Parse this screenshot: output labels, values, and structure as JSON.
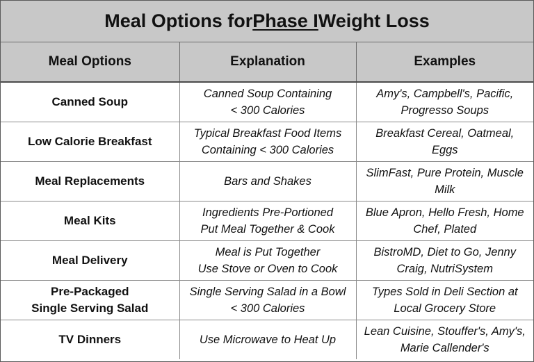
{
  "title": {
    "prefix": "Meal Options for ",
    "underlined": "Phase I",
    "suffix": " Weight Loss"
  },
  "headers": [
    "Meal Options",
    "Explanation",
    "Examples"
  ],
  "rows": [
    {
      "option": [
        "Canned Soup"
      ],
      "explanation": [
        "Canned Soup Containing",
        "< 300 Calories"
      ],
      "examples": [
        "Amy's, Campbell's, Pacific,",
        "Progresso Soups"
      ]
    },
    {
      "option": [
        "Low Calorie Breakfast"
      ],
      "explanation": [
        "Typical Breakfast Food Items",
        "Containing < 300 Calories"
      ],
      "examples": [
        "Breakfast Cereal, Oatmeal,",
        "Eggs"
      ]
    },
    {
      "option": [
        "Meal Replacements"
      ],
      "explanation": [
        "Bars and Shakes"
      ],
      "examples": [
        "SlimFast, Pure Protein, Muscle",
        "Milk"
      ]
    },
    {
      "option": [
        "Meal Kits"
      ],
      "explanation": [
        "Ingredients Pre-Portioned",
        "Put Meal Together & Cook"
      ],
      "examples": [
        "Blue Apron, Hello Fresh, Home",
        "Chef, Plated"
      ]
    },
    {
      "option": [
        "Meal Delivery"
      ],
      "explanation": [
        "Meal is Put Together",
        "Use Stove or Oven to Cook"
      ],
      "examples": [
        "BistroMD, Diet to Go, Jenny",
        "Craig, NutriSystem"
      ]
    },
    {
      "option": [
        "Pre-Packaged",
        "Single Serving Salad"
      ],
      "explanation": [
        "Single Serving Salad in a Bowl",
        "< 300 Calories"
      ],
      "examples": [
        "Types Sold in Deli Section at",
        "Local Grocery Store"
      ]
    },
    {
      "option": [
        "TV Dinners"
      ],
      "explanation": [
        "Use Microwave to Heat Up"
      ],
      "examples": [
        "Lean Cuisine, Stouffer's, Amy's,",
        "Marie Callender's"
      ]
    }
  ]
}
